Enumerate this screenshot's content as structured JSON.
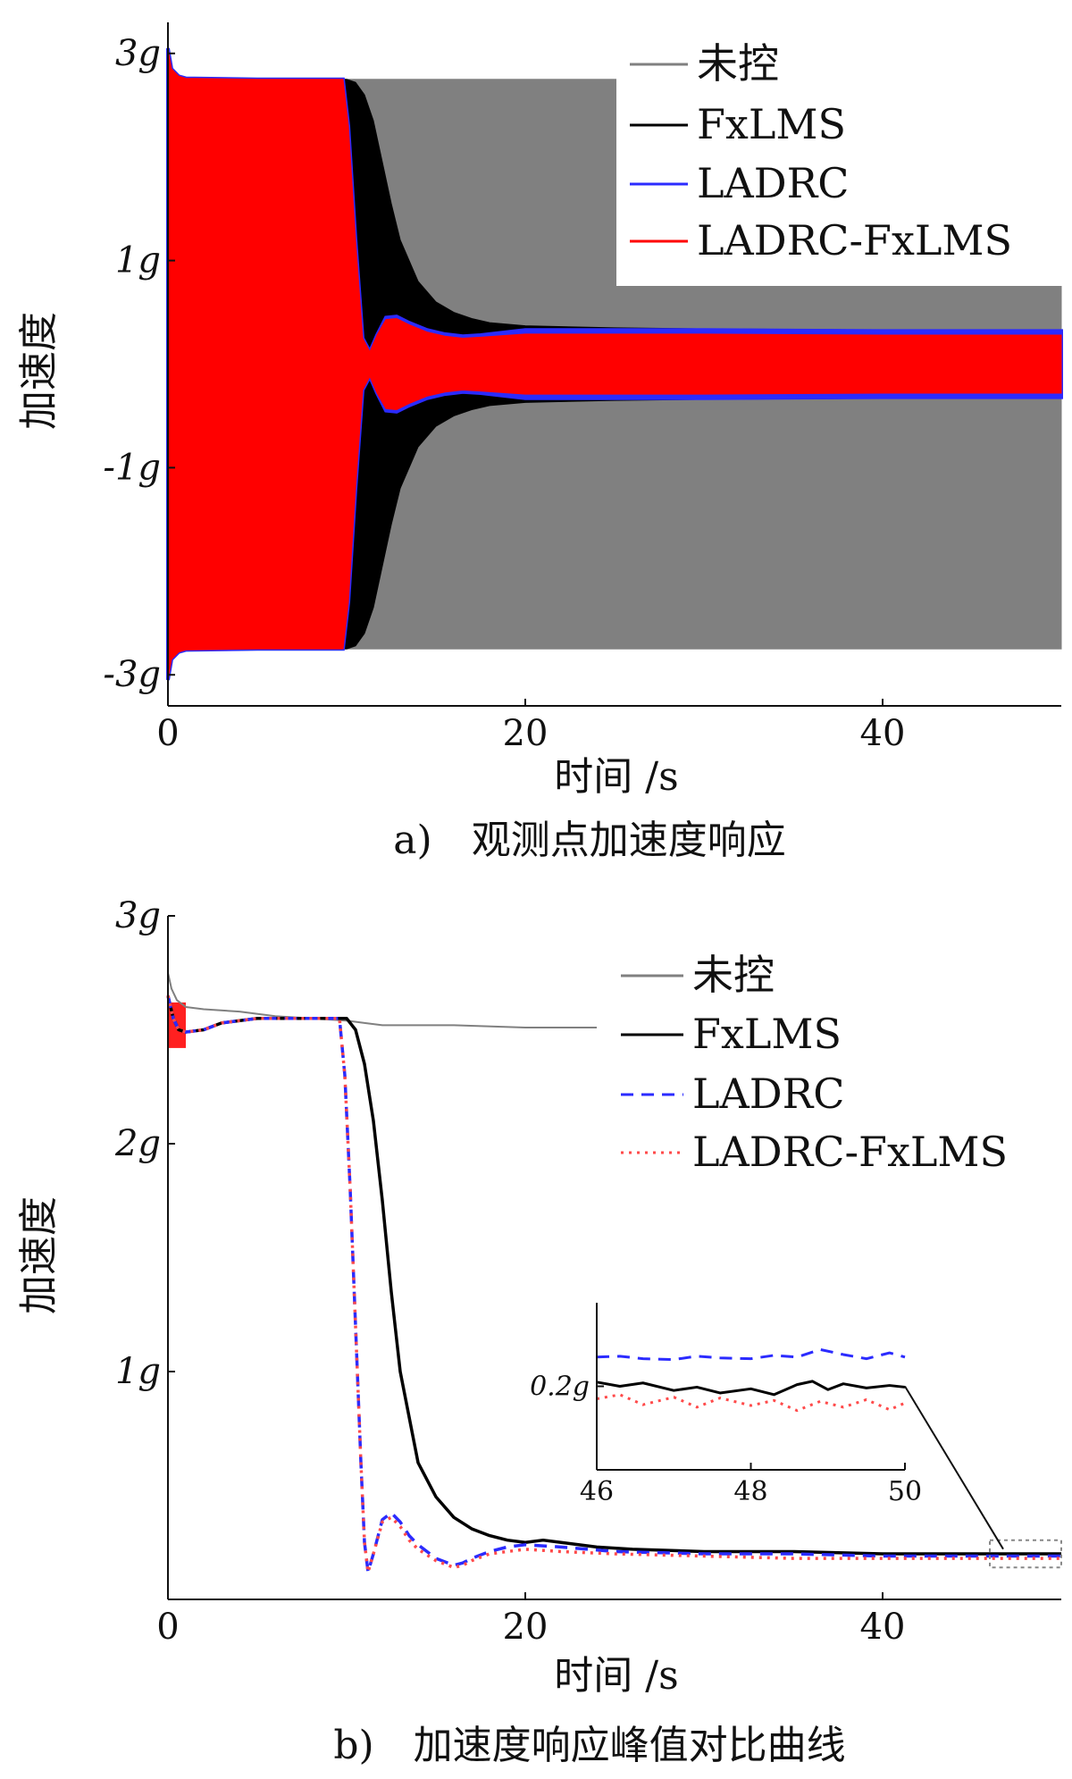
{
  "chart_data": [
    {
      "type": "area",
      "caption": "a)　观测点加速度响应",
      "xlabel": "时间 /s",
      "ylabel": "加速度",
      "xlim": [
        0,
        50
      ],
      "ylim": [
        -3.3,
        3.3
      ],
      "xticks": [
        {
          "value": 0,
          "label": "0"
        },
        {
          "value": 20,
          "label": "20"
        },
        {
          "value": 40,
          "label": "40"
        }
      ],
      "yticks": [
        {
          "value": 3,
          "label": "3g"
        },
        {
          "value": 1,
          "label": "1g"
        },
        {
          "value": -1,
          "label": "-1g"
        },
        {
          "value": -3,
          "label": "-3g"
        }
      ],
      "legend_position": "top-right",
      "series": [
        {
          "name": "未控",
          "color": "#808080",
          "style": "envelope",
          "x": [
            0,
            0.2,
            0.6,
            1.0,
            5,
            10,
            20,
            30,
            40,
            50
          ],
          "y": [
            3.05,
            2.85,
            2.78,
            2.76,
            2.75,
            2.75,
            2.75,
            2.75,
            2.75,
            2.75
          ]
        },
        {
          "name": "FxLMS",
          "color": "#000000",
          "style": "envelope",
          "x": [
            0,
            0.2,
            0.6,
            1.0,
            5,
            10,
            10.5,
            11,
            11.5,
            12,
            12.5,
            13,
            14,
            15,
            16,
            17,
            18,
            20,
            25,
            30,
            40,
            50
          ],
          "y": [
            3.05,
            2.85,
            2.78,
            2.76,
            2.75,
            2.75,
            2.72,
            2.6,
            2.35,
            1.95,
            1.55,
            1.2,
            0.8,
            0.6,
            0.5,
            0.44,
            0.4,
            0.37,
            0.35,
            0.34,
            0.33,
            0.33
          ]
        },
        {
          "name": "LADRC",
          "color": "#2b2bff",
          "style": "envelope",
          "x": [
            0,
            0.2,
            0.6,
            1.0,
            5,
            9.8,
            10.1,
            10.5,
            10.9,
            11.3,
            11.7,
            12.2,
            12.8,
            13.5,
            14.5,
            15.5,
            16.5,
            17.5,
            20,
            25,
            30,
            40,
            50
          ],
          "y": [
            3.05,
            2.85,
            2.78,
            2.76,
            2.75,
            2.75,
            2.3,
            1.2,
            0.25,
            0.12,
            0.28,
            0.45,
            0.46,
            0.4,
            0.33,
            0.29,
            0.27,
            0.28,
            0.33,
            0.33,
            0.33,
            0.32,
            0.32
          ]
        },
        {
          "name": "LADRC-FxLMS",
          "color": "#ff0000",
          "style": "envelope",
          "x": [
            0,
            0.2,
            0.6,
            1.0,
            5,
            9.8,
            10.1,
            10.5,
            10.9,
            11.3,
            11.7,
            12.2,
            12.8,
            13.5,
            14.5,
            15.5,
            16.5,
            17.5,
            20,
            25,
            30,
            40,
            50
          ],
          "y": [
            3.05,
            2.85,
            2.78,
            2.76,
            2.75,
            2.75,
            2.3,
            1.2,
            0.25,
            0.12,
            0.28,
            0.43,
            0.44,
            0.38,
            0.31,
            0.27,
            0.25,
            0.26,
            0.29,
            0.29,
            0.29,
            0.28,
            0.28
          ]
        }
      ]
    },
    {
      "type": "line",
      "caption": "b)　加速度响应峰值对比曲线",
      "xlabel": "时间 /s",
      "ylabel": "加速度",
      "xlim": [
        0,
        50
      ],
      "ylim": [
        0,
        3.0
      ],
      "xticks": [
        {
          "value": 0,
          "label": "0"
        },
        {
          "value": 20,
          "label": "20"
        },
        {
          "value": 40,
          "label": "40"
        }
      ],
      "yticks": [
        {
          "value": 3,
          "label": "3g"
        },
        {
          "value": 2,
          "label": "2g"
        },
        {
          "value": 1,
          "label": "1g"
        }
      ],
      "legend_position": "top-right",
      "series": [
        {
          "name": "未控",
          "color": "#808080",
          "style": "solid",
          "x": [
            0,
            0.2,
            0.5,
            1,
            2,
            4,
            6,
            8,
            10,
            11,
            12,
            14,
            16,
            20,
            24
          ],
          "y": [
            2.75,
            2.68,
            2.63,
            2.6,
            2.59,
            2.58,
            2.56,
            2.55,
            2.54,
            2.53,
            2.52,
            2.52,
            2.52,
            2.51,
            2.51
          ]
        },
        {
          "name": "FxLMS",
          "color": "#000000",
          "style": "solid",
          "x": [
            0,
            0.3,
            0.6,
            1,
            2,
            3,
            5,
            7,
            9,
            10,
            10.5,
            11,
            11.5,
            12,
            12.5,
            13,
            14,
            15,
            16,
            17,
            18,
            19,
            20,
            21,
            22,
            24,
            26,
            30,
            35,
            40,
            45,
            50
          ],
          "y": [
            2.65,
            2.55,
            2.5,
            2.49,
            2.5,
            2.53,
            2.55,
            2.55,
            2.55,
            2.55,
            2.5,
            2.35,
            2.1,
            1.75,
            1.35,
            1.0,
            0.6,
            0.45,
            0.36,
            0.31,
            0.28,
            0.26,
            0.25,
            0.26,
            0.25,
            0.23,
            0.22,
            0.21,
            0.21,
            0.2,
            0.2,
            0.2
          ]
        },
        {
          "name": "LADRC",
          "color": "#2b2bff",
          "style": "dashed",
          "x": [
            0,
            0.3,
            0.6,
            1,
            2,
            3,
            5,
            7,
            9.6,
            9.9,
            10.2,
            10.5,
            10.8,
            11.0,
            11.2,
            11.5,
            12,
            12.5,
            13,
            13.5,
            14,
            15,
            16,
            16.5,
            17,
            18,
            19,
            20,
            22,
            25,
            30,
            35,
            40,
            45,
            50
          ],
          "y": [
            2.65,
            2.55,
            2.5,
            2.49,
            2.5,
            2.53,
            2.55,
            2.55,
            2.55,
            2.3,
            1.8,
            1.2,
            0.6,
            0.25,
            0.12,
            0.2,
            0.35,
            0.38,
            0.34,
            0.28,
            0.24,
            0.18,
            0.15,
            0.16,
            0.18,
            0.21,
            0.23,
            0.24,
            0.23,
            0.21,
            0.2,
            0.2,
            0.19,
            0.19,
            0.19
          ]
        },
        {
          "name": "LADRC-FxLMS",
          "color": "#ff4a4a",
          "style": "dotted",
          "x": [
            0,
            0.3,
            0.6,
            1,
            2,
            3,
            5,
            7,
            9.6,
            9.9,
            10.2,
            10.5,
            10.8,
            11.0,
            11.2,
            11.5,
            12,
            12.5,
            13,
            13.5,
            14,
            15,
            16,
            16.5,
            17,
            18,
            19,
            20,
            22,
            25,
            30,
            35,
            40,
            45,
            50
          ],
          "y": [
            2.65,
            2.55,
            2.5,
            2.49,
            2.5,
            2.53,
            2.55,
            2.55,
            2.55,
            2.3,
            1.8,
            1.2,
            0.6,
            0.25,
            0.12,
            0.2,
            0.34,
            0.36,
            0.32,
            0.26,
            0.22,
            0.17,
            0.14,
            0.15,
            0.17,
            0.2,
            0.21,
            0.22,
            0.21,
            0.2,
            0.19,
            0.18,
            0.18,
            0.18,
            0.18
          ]
        }
      ],
      "inset": {
        "xlim": [
          46,
          50
        ],
        "ylim": [
          0.1,
          0.3
        ],
        "xticks": [
          {
            "value": 46,
            "label": "46"
          },
          {
            "value": 48,
            "label": "48"
          },
          {
            "value": 50,
            "label": "50"
          }
        ],
        "yticks": [
          {
            "value": 0.2,
            "label": "0.2g"
          }
        ],
        "series": [
          {
            "name": "LADRC",
            "color": "#2b2bff",
            "style": "dashed",
            "x": [
              46,
              46.3,
              46.6,
              47,
              47.3,
              47.6,
              48,
              48.3,
              48.6,
              48.9,
              49.2,
              49.5,
              49.8,
              50
            ],
            "y": [
              0.235,
              0.236,
              0.233,
              0.232,
              0.236,
              0.234,
              0.233,
              0.237,
              0.235,
              0.244,
              0.238,
              0.233,
              0.24,
              0.235
            ]
          },
          {
            "name": "FxLMS",
            "color": "#000000",
            "style": "solid",
            "x": [
              46,
              46.3,
              46.6,
              47,
              47.3,
              47.6,
              48,
              48.3,
              48.6,
              48.8,
              49,
              49.2,
              49.5,
              49.8,
              50
            ],
            "y": [
              0.205,
              0.2,
              0.204,
              0.195,
              0.199,
              0.192,
              0.197,
              0.19,
              0.202,
              0.206,
              0.196,
              0.203,
              0.198,
              0.201,
              0.199
            ]
          },
          {
            "name": "LADRC-FxLMS",
            "color": "#ff4a4a",
            "style": "dotted",
            "x": [
              46,
              46.3,
              46.6,
              47,
              47.3,
              47.6,
              48,
              48.3,
              48.6,
              48.9,
              49.2,
              49.5,
              49.8,
              50
            ],
            "y": [
              0.185,
              0.19,
              0.178,
              0.187,
              0.175,
              0.186,
              0.177,
              0.183,
              0.171,
              0.182,
              0.175,
              0.184,
              0.172,
              0.18
            ]
          }
        ]
      }
    }
  ]
}
